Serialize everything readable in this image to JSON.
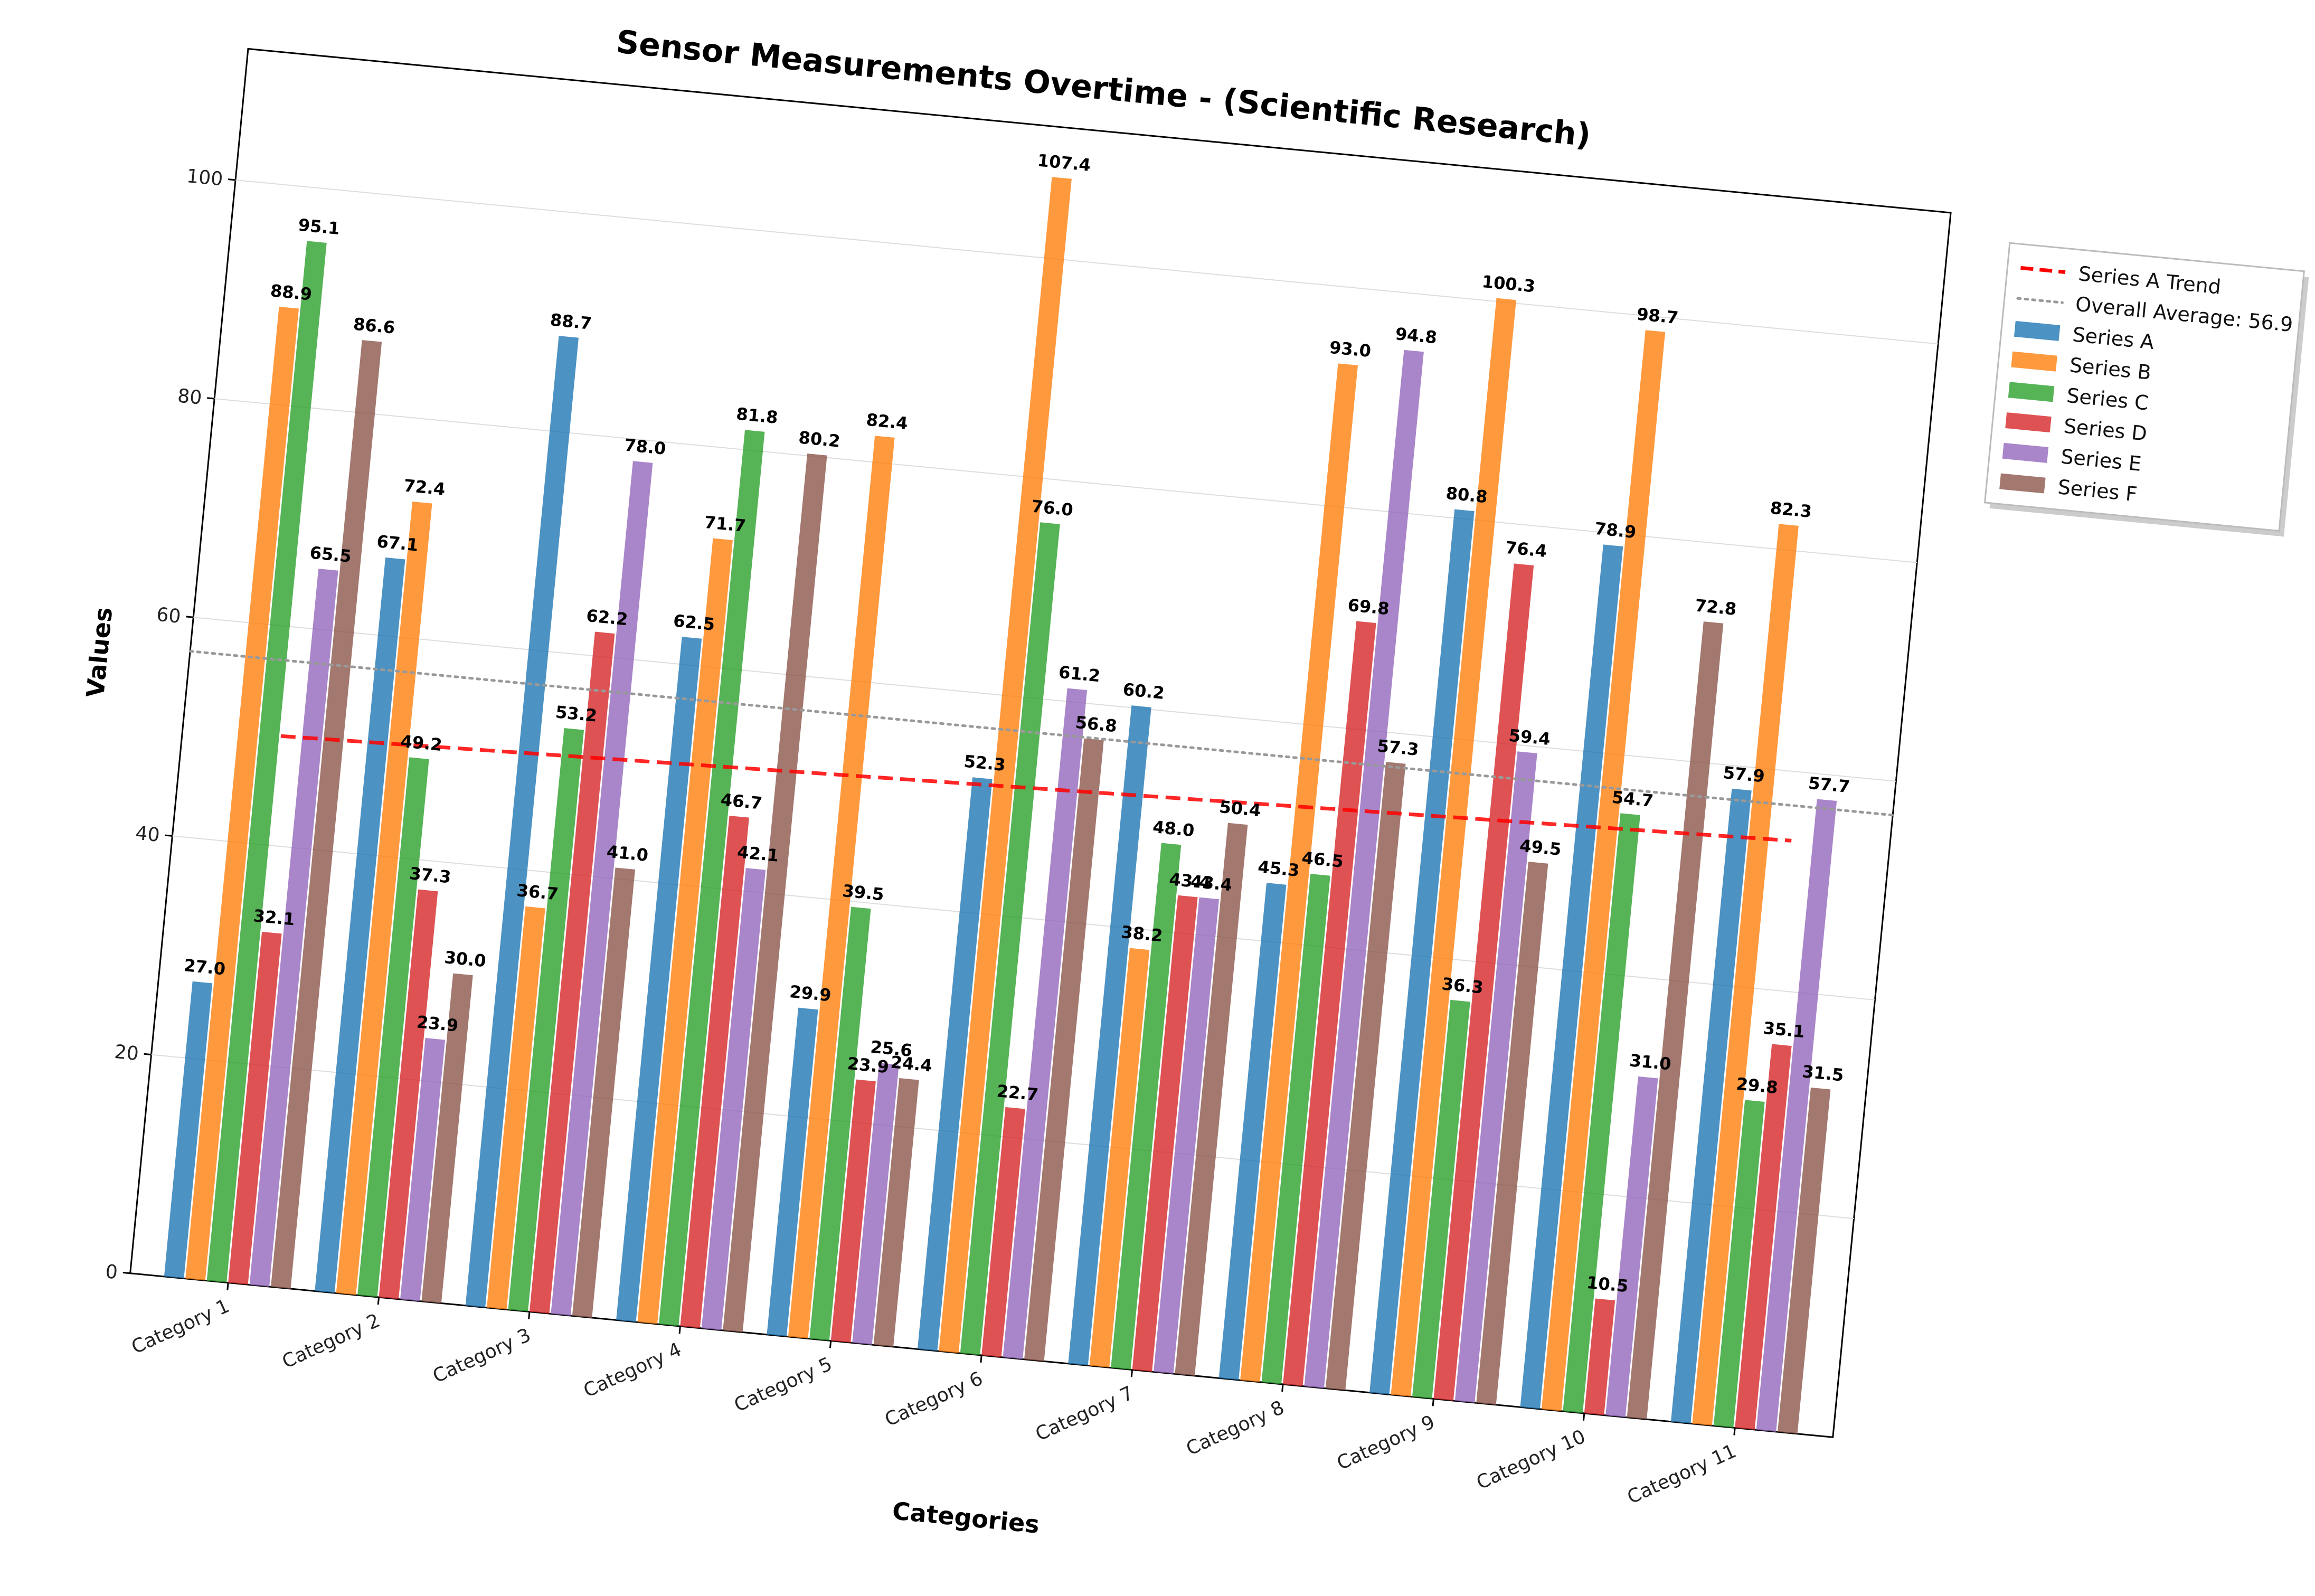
{
  "chart_data": {
    "type": "bar",
    "title": "Sensor Measurements Overtime - (Scientific Research)",
    "xlabel": "Categories",
    "ylabel": "Values",
    "ylim": [
      0,
      112
    ],
    "yticks": [
      0,
      20,
      40,
      60,
      80,
      100
    ],
    "grid": "horizontal",
    "legend_position": "outside-right",
    "categories": [
      "Category 1",
      "Category 2",
      "Category 3",
      "Category 4",
      "Category 5",
      "Category 6",
      "Category 7",
      "Category 8",
      "Category 9",
      "Category 10",
      "Category 11"
    ],
    "series": [
      {
        "name": "Series A",
        "color": "#1f77b4",
        "values": [
          27.0,
          67.1,
          88.7,
          62.5,
          29.9,
          52.3,
          60.2,
          45.3,
          80.8,
          78.9,
          57.9
        ]
      },
      {
        "name": "Series B",
        "color": "#ff7f0e",
        "values": [
          88.9,
          72.4,
          36.7,
          71.7,
          82.4,
          107.4,
          38.2,
          93.0,
          100.3,
          98.7,
          82.3
        ]
      },
      {
        "name": "Series C",
        "color": "#2ca02c",
        "values": [
          95.1,
          49.2,
          53.2,
          81.8,
          39.5,
          76.0,
          48.0,
          46.5,
          36.3,
          54.7,
          29.8
        ]
      },
      {
        "name": "Series D",
        "color": "#d62728",
        "values": [
          32.1,
          37.3,
          62.2,
          46.7,
          23.9,
          22.7,
          43.4,
          69.8,
          76.4,
          10.5,
          35.1
        ]
      },
      {
        "name": "Series E",
        "color": "#9467bd",
        "values": [
          65.5,
          23.9,
          78.0,
          42.1,
          25.6,
          61.2,
          43.4,
          94.8,
          59.4,
          31.0,
          57.7
        ]
      },
      {
        "name": "Series F",
        "color": "#8c564b",
        "values": [
          86.6,
          30.0,
          41.0,
          80.2,
          24.4,
          56.8,
          50.4,
          57.3,
          49.5,
          72.8,
          31.5
        ]
      }
    ],
    "trend_line": {
      "name": "Series A Trend",
      "color": "#ff0000",
      "style": "dashed",
      "start": 50.0,
      "end": 53.7
    },
    "average_line": {
      "name": "Overall Average: 56.9",
      "value": 56.9,
      "color": "#999999",
      "style": "dotted"
    }
  }
}
